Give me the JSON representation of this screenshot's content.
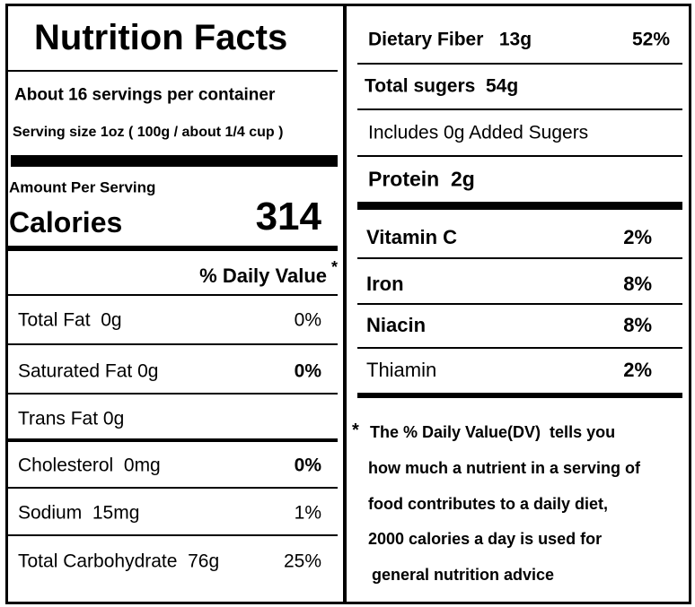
{
  "header": {
    "title": "Nutrition Facts",
    "servings": "About 16 servings per container",
    "serving_size": "Serving size 1oz ( 100g / about 1/4 cup )"
  },
  "calories": {
    "heading": "Amount Per Serving",
    "label": "Calories",
    "value": 314
  },
  "daily_value": {
    "heading": "% Daily Value",
    "marker": "*"
  },
  "left_rows": [
    {
      "label": "Total Fat  0g",
      "dv": "0%"
    },
    {
      "label": "Saturated Fat 0g",
      "dv": "0%"
    },
    {
      "label": "Trans Fat 0g"
    },
    {
      "label": "Cholesterol  0mg",
      "dv": "0%"
    },
    {
      "label": "Sodium  15mg",
      "dv": "1%"
    },
    {
      "label": "Total Carbohydrate  76g",
      "dv": "25%"
    }
  ],
  "right_rows": [
    {
      "label": "Dietary Fiber   13g",
      "dv": "52%"
    },
    {
      "label": "Total sugers  54g"
    },
    {
      "label": "Includes 0g Added Sugers"
    },
    {
      "label": "Protein  2g"
    }
  ],
  "vitamins": [
    {
      "label": "Vitamin C",
      "dv": "2%"
    },
    {
      "label": "Iron",
      "dv": "8%"
    },
    {
      "label": "Niacin",
      "dv": "8%"
    },
    {
      "label": "Thiamin",
      "dv": "2%"
    }
  ],
  "footnote": {
    "marker": "*",
    "lines": [
      "The % Daily Value(DV)  tells you",
      "how much a nutrient in a serving of",
      "food contributes to a daily diet,",
      "2000 calories a day is used for",
      "general nutrition advice"
    ]
  }
}
